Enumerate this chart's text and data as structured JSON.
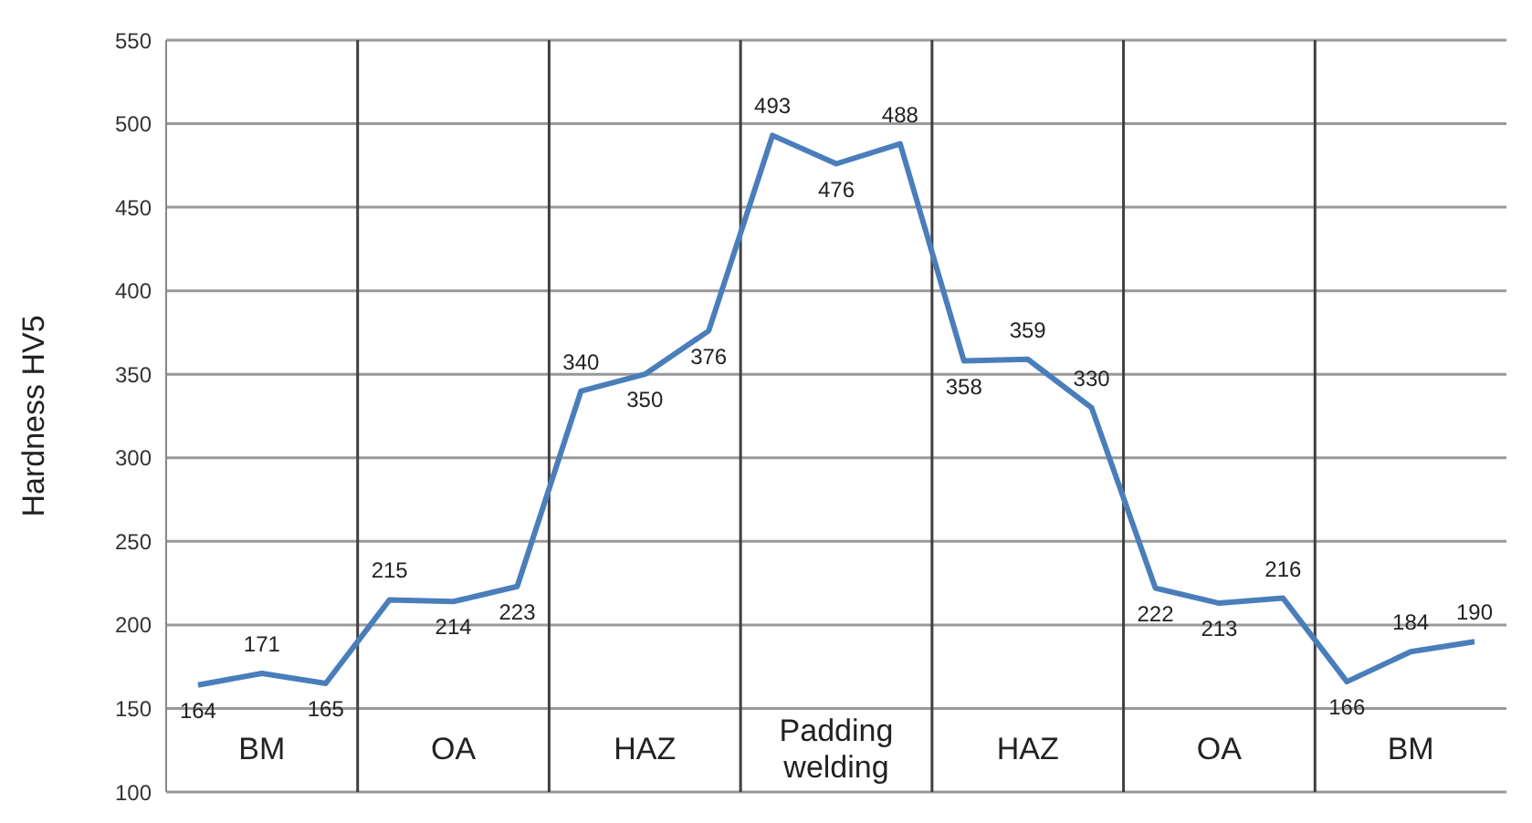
{
  "chart_data": {
    "type": "line",
    "ylabel": "Hardness HV5",
    "categories": [
      null,
      "BM",
      null,
      null,
      "OA",
      null,
      null,
      "HAZ",
      null,
      null,
      "Padding welding",
      null,
      null,
      "HAZ",
      null,
      null,
      "OA",
      null,
      null,
      "BM",
      null
    ],
    "series": [
      {
        "color": "#4a7ebb",
        "values": [
          164,
          171,
          165,
          215,
          214,
          223,
          340,
          350,
          376,
          493,
          476,
          488,
          358,
          359,
          330,
          222,
          213,
          216,
          166,
          184,
          190
        ]
      }
    ],
    "ylim": [
      100,
      550
    ],
    "yticks": [
      100,
      150,
      200,
      250,
      300,
      350,
      400,
      450,
      500,
      550
    ],
    "grid": "y",
    "marker": "none",
    "line_style": "solid",
    "data_labels": true
  }
}
